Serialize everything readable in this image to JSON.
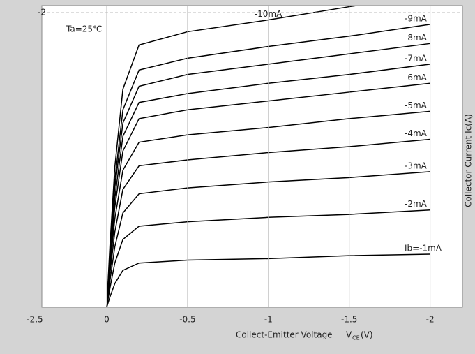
{
  "chart_data": {
    "type": "line",
    "annotation": "Ta=25℃",
    "stray_tick": "-2.5",
    "xlabel": "Collect-Emitter Voltage",
    "xlabel_symbol": "V",
    "xlabel_subscript": "CE",
    "xlabel_unit": "(V)",
    "ylabel": "Collector Current  Ic(A)",
    "x": [
      0,
      -0.02,
      -0.05,
      -0.1,
      -0.2,
      -0.5,
      -1,
      -1.5,
      -2
    ],
    "xlim": [
      0,
      -2.2
    ],
    "xticks": [
      0,
      -0.5,
      -1,
      -1.5,
      -2
    ],
    "ylim": [
      0,
      -2
    ],
    "yticks": [
      -2
    ],
    "grid": true,
    "series": [
      {
        "name": "Ib=-1mA",
        "color": "#000000",
        "values": [
          0,
          -0.07,
          -0.16,
          -0.25,
          -0.3,
          -0.32,
          -0.33,
          -0.35,
          -0.36
        ]
      },
      {
        "name": "-2mA",
        "color": "#000000",
        "values": [
          0,
          -0.13,
          -0.3,
          -0.46,
          -0.55,
          -0.58,
          -0.61,
          -0.63,
          -0.66
        ]
      },
      {
        "name": "-3mA",
        "color": "#000000",
        "values": [
          0,
          -0.18,
          -0.41,
          -0.64,
          -0.77,
          -0.81,
          -0.85,
          -0.88,
          -0.92
        ]
      },
      {
        "name": "-4mA",
        "color": "#000000",
        "values": [
          0,
          -0.23,
          -0.51,
          -0.8,
          -0.96,
          -1.0,
          -1.05,
          -1.09,
          -1.14
        ]
      },
      {
        "name": "-5mA",
        "color": "#000000",
        "values": [
          0,
          -0.27,
          -0.6,
          -0.93,
          -1.12,
          -1.17,
          -1.22,
          -1.28,
          -1.33
        ]
      },
      {
        "name": "-6mA",
        "color": "#000000",
        "values": [
          0,
          -0.3,
          -0.68,
          -1.06,
          -1.28,
          -1.34,
          -1.4,
          -1.46,
          -1.52
        ]
      },
      {
        "name": "-7mA",
        "color": "#000000",
        "values": [
          0,
          -0.33,
          -0.74,
          -1.16,
          -1.39,
          -1.45,
          -1.52,
          -1.58,
          -1.65
        ]
      },
      {
        "name": "-8mA",
        "color": "#000000",
        "values": [
          0,
          -0.36,
          -0.81,
          -1.25,
          -1.5,
          -1.58,
          -1.65,
          -1.72,
          -1.79
        ]
      },
      {
        "name": "-9mA",
        "color": "#000000",
        "values": [
          0,
          -0.38,
          -0.86,
          -1.34,
          -1.61,
          -1.69,
          -1.77,
          -1.84,
          -1.92
        ]
      },
      {
        "name": "-10mA",
        "color": "#000000",
        "values": [
          0,
          -0.42,
          -0.95,
          -1.48,
          -1.78,
          -1.87,
          -1.95,
          -2.04,
          -2.12
        ]
      }
    ]
  }
}
